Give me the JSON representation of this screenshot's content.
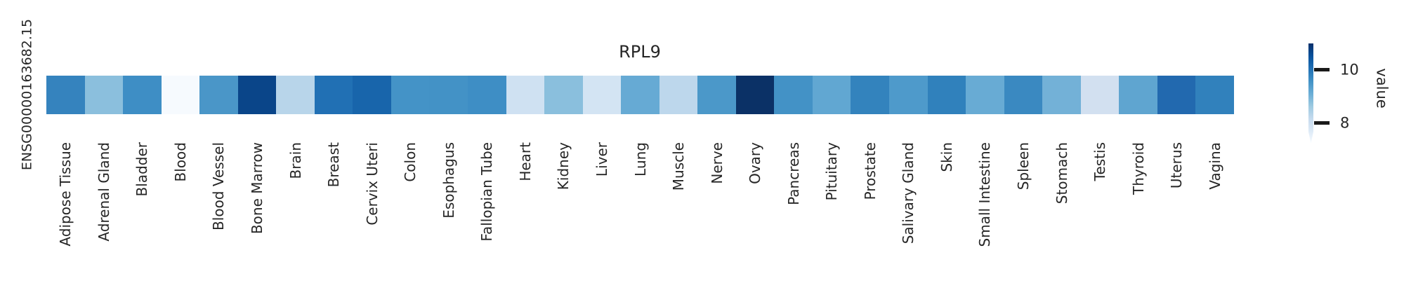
{
  "figure": {
    "title": "RPL9",
    "row_label": "ENSG00000163682.15"
  },
  "chart_data": {
    "type": "heatmap",
    "title": "RPL9",
    "rows": [
      "ENSG00000163682.15"
    ],
    "categories": [
      "Adipose Tissue",
      "Adrenal Gland",
      "Bladder",
      "Blood",
      "Blood Vessel",
      "Bone Marrow",
      "Brain",
      "Breast",
      "Cervix Uteri",
      "Colon",
      "Esophagus",
      "Fallopian Tube",
      "Heart",
      "Kidney",
      "Liver",
      "Lung",
      "Muscle",
      "Nerve",
      "Ovary",
      "Pancreas",
      "Pituitary",
      "Prostate",
      "Salivary Gland",
      "Skin",
      "Small Intestine",
      "Spleen",
      "Stomach",
      "Testis",
      "Thyroid",
      "Uterus",
      "Vagina"
    ],
    "values": [
      [
        9.7,
        8.8,
        9.6,
        7.3,
        9.5,
        10.7,
        8.3,
        10.1,
        10.1,
        9.6,
        9.6,
        9.6,
        8.0,
        8.9,
        7.9,
        9.2,
        8.3,
        9.5,
        10.9,
        9.6,
        9.2,
        9.8,
        9.4,
        9.8,
        9.1,
        9.7,
        9.0,
        8.0,
        9.3,
        10.1,
        9.8
      ]
    ],
    "cell_colors": [
      "#3583be",
      "#8bbfdd",
      "#3e8ec5",
      "#f6fafe",
      "#4a96c8",
      "#0a4589",
      "#b8d5ea",
      "#2170b4",
      "#1865ab",
      "#4493c7",
      "#4392c6",
      "#3e8ec5",
      "#cfe1f2",
      "#8abfdd",
      "#d3e4f3",
      "#66aad4",
      "#bdd7ec",
      "#4b98c9",
      "#0b3166",
      "#4392c6",
      "#61a7d2",
      "#3383bd",
      "#4e9acb",
      "#3081bc",
      "#68abd4",
      "#3a89c1",
      "#73b1d7",
      "#d2e0f0",
      "#5fa5d0",
      "#2269af",
      "#3181bc"
    ],
    "colorbar": {
      "label": "value",
      "ticks": [
        10,
        8
      ],
      "tick_labels": [
        "10",
        "8"
      ],
      "vmin": 7.2,
      "vmax": 11.0,
      "colormap": "Blues",
      "position": "right",
      "extend": "min"
    },
    "layout": {
      "grid": false,
      "legend": false,
      "x_tick_rotation": 90,
      "xlabel": "",
      "ylabel": ""
    }
  }
}
